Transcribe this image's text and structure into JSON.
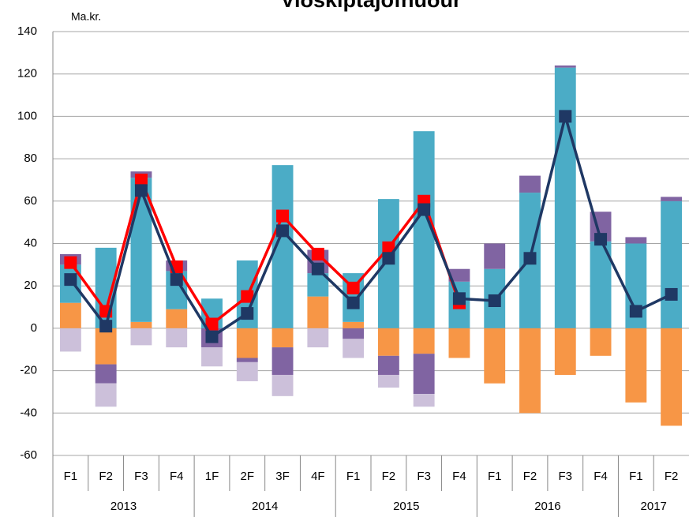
{
  "chart_data": {
    "type": "bar",
    "title": "Viðskiptajöfnuður",
    "y_label": "Ma.kr.",
    "groups": [
      {
        "label": "2013",
        "categories": [
          "F1",
          "F2",
          "F3",
          "F4"
        ]
      },
      {
        "label": "2014",
        "categories": [
          "1F",
          "2F",
          "3F",
          "4F"
        ]
      },
      {
        "label": "2015",
        "categories": [
          "F1",
          "F2",
          "F3",
          "F4"
        ]
      },
      {
        "label": "2016",
        "categories": [
          "F1",
          "F2",
          "F3",
          "F4"
        ]
      },
      {
        "label": "2017",
        "categories": [
          "F1",
          "F2"
        ]
      }
    ],
    "ylim": [
      -60,
      140
    ],
    "yticks": [
      -60,
      -40,
      -20,
      0,
      20,
      40,
      60,
      80,
      100,
      120,
      140
    ],
    "grid": true,
    "series": [
      {
        "type": "bar",
        "color": "#f79646",
        "values": [
          12,
          0,
          3,
          9,
          0,
          0,
          0,
          15,
          3,
          0,
          0,
          0,
          0,
          0,
          0,
          0,
          0,
          0
        ]
      },
      {
        "type": "bar",
        "color": "#4bacc6",
        "values": [
          18,
          38,
          68,
          18,
          14,
          32,
          77,
          11,
          23,
          61,
          93,
          22,
          28,
          64,
          123,
          41,
          40,
          60
        ]
      },
      {
        "type": "bar",
        "color": "#8064a2",
        "values": [
          5,
          0,
          3,
          5,
          0,
          0,
          0,
          11,
          0,
          0,
          0,
          6,
          12,
          8,
          1,
          14,
          3,
          2
        ]
      },
      {
        "type": "bar",
        "color": "#f79646",
        "values": [
          0,
          -17,
          0,
          0,
          0,
          -14,
          -9,
          0,
          0,
          -13,
          -12,
          -14,
          -26,
          -40,
          -22,
          -13,
          -35,
          -46
        ]
      },
      {
        "type": "bar",
        "color": "#8064a2",
        "values": [
          0,
          -9,
          0,
          0,
          -9,
          -2,
          -13,
          0,
          -5,
          -9,
          -19,
          0,
          0,
          0,
          0,
          0,
          0,
          0
        ]
      },
      {
        "type": "bar",
        "color": "#ccc0da",
        "values": [
          -11,
          -11,
          -8,
          -9,
          -9,
          -9,
          -10,
          -9,
          -9,
          -6,
          -6,
          0,
          0,
          0,
          0,
          0,
          0,
          0
        ]
      },
      {
        "type": "line",
        "color": "#ff0000",
        "values": [
          31,
          8,
          70,
          29,
          2,
          15,
          53,
          35,
          19,
          38,
          60,
          12,
          null,
          null,
          null,
          null,
          null,
          null
        ]
      },
      {
        "type": "line",
        "color": "#1f3864",
        "values": [
          23,
          1,
          65,
          23,
          -4,
          7,
          46,
          28,
          12,
          33,
          56,
          14,
          13,
          33,
          100,
          42,
          8,
          16
        ]
      }
    ]
  }
}
